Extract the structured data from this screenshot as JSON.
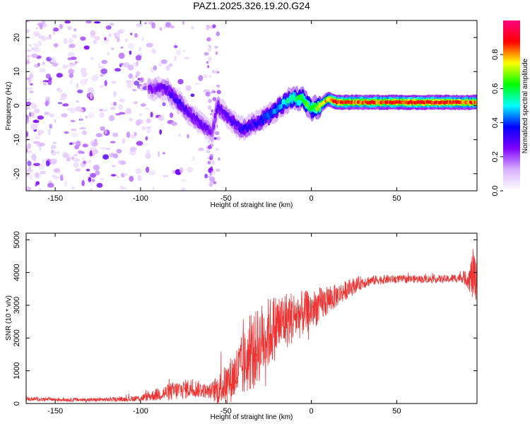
{
  "title": "PAZ1.2025.326.19.20.G24",
  "chart_data": [
    {
      "type": "heatmap",
      "title": "PAZ1.2025.326.19.20.G24",
      "xlabel": "Height of straight line (km)",
      "ylabel": "Frequency (Hz)",
      "xlim": [
        -167,
        97
      ],
      "ylim": [
        -25,
        25
      ],
      "xticks": [
        -150,
        -100,
        -50,
        0,
        50
      ],
      "yticks": [
        20,
        10,
        0,
        -10,
        -20
      ],
      "colorbar": {
        "label": "Normalized spectral amplitude",
        "range": [
          0,
          1
        ],
        "ticks": [
          "0.0",
          "0.2",
          "0.4",
          "0.6",
          "0.8"
        ],
        "tick_values": [
          0.0,
          0.2,
          0.4,
          0.6,
          0.8
        ],
        "colormap": [
          "#ffffff",
          "#d8b0ff",
          "#7f00ff",
          "#0000ff",
          "#00ffff",
          "#00ff00",
          "#ffff00",
          "#ff0000",
          "#ff0080"
        ]
      },
      "ridge": [
        {
          "x": -95,
          "freq": 5,
          "amp": 0.25
        },
        {
          "x": -85,
          "freq": 5,
          "amp": 0.3
        },
        {
          "x": -78,
          "freq": 1,
          "amp": 0.35
        },
        {
          "x": -70,
          "freq": -3,
          "amp": 0.3
        },
        {
          "x": -63,
          "freq": -6,
          "amp": 0.3
        },
        {
          "x": -58,
          "freq": -8,
          "amp": 0.25
        },
        {
          "x": -55,
          "freq": 0,
          "amp": 0.3
        },
        {
          "x": -48,
          "freq": -4,
          "amp": 0.3
        },
        {
          "x": -40,
          "freq": -7,
          "amp": 0.35
        },
        {
          "x": -32,
          "freq": -5,
          "amp": 0.35
        },
        {
          "x": -25,
          "freq": -3,
          "amp": 0.45
        },
        {
          "x": -18,
          "freq": 0,
          "amp": 0.5
        },
        {
          "x": -12,
          "freq": 2,
          "amp": 0.6
        },
        {
          "x": -5,
          "freq": 2,
          "amp": 0.7
        },
        {
          "x": 0,
          "freq": -1,
          "amp": 0.65
        },
        {
          "x": 5,
          "freq": 0,
          "amp": 0.8
        },
        {
          "x": 10,
          "freq": 2,
          "amp": 0.85
        },
        {
          "x": 15,
          "freq": 1,
          "amp": 0.95
        },
        {
          "x": 30,
          "freq": 1,
          "amp": 0.9
        },
        {
          "x": 50,
          "freq": 1,
          "amp": 0.95
        },
        {
          "x": 70,
          "freq": 1,
          "amp": 0.95
        },
        {
          "x": 97,
          "freq": 1,
          "amp": 0.9
        }
      ],
      "noise_region": {
        "x_range": [
          -167,
          -55
        ],
        "freq_range": [
          -25,
          25
        ],
        "amp_range": [
          0.05,
          0.3
        ]
      }
    },
    {
      "type": "line",
      "title": "",
      "xlabel": "Height of straight line (km)",
      "ylabel": "SNR (10 * v/v)",
      "xlim": [
        -167,
        97
      ],
      "ylim": [
        0,
        5200
      ],
      "xticks": [
        -150,
        -100,
        -50,
        0,
        50
      ],
      "yticks": [
        0,
        1000,
        2000,
        3000,
        4000,
        5000
      ],
      "color": "#ee3333",
      "series": [
        {
          "name": "SNR",
          "x": [
            -167,
            -150,
            -130,
            -110,
            -100,
            -95,
            -90,
            -85,
            -80,
            -75,
            -70,
            -65,
            -60,
            -55,
            -50,
            -45,
            -40,
            -35,
            -30,
            -25,
            -20,
            -15,
            -10,
            -5,
            0,
            5,
            10,
            15,
            20,
            25,
            30,
            35,
            40,
            50,
            60,
            70,
            80,
            88,
            92,
            95,
            97
          ],
          "y": [
            140,
            120,
            110,
            130,
            160,
            220,
            280,
            330,
            380,
            430,
            470,
            430,
            360,
            420,
            600,
            850,
            1150,
            1500,
            1850,
            2150,
            2400,
            2550,
            2650,
            2750,
            2850,
            3000,
            3150,
            3300,
            3450,
            3600,
            3700,
            3750,
            3780,
            3800,
            3800,
            3800,
            3800,
            3850,
            3800,
            3900,
            3700
          ],
          "noise_amplitude": [
            60,
            60,
            60,
            70,
            100,
            150,
            200,
            250,
            300,
            300,
            300,
            250,
            200,
            450,
            600,
            800,
            1000,
            1100,
            1200,
            1100,
            1000,
            900,
            800,
            700,
            600,
            550,
            450,
            350,
            300,
            250,
            200,
            150,
            150,
            120,
            120,
            120,
            120,
            150,
            300,
            900,
            500
          ]
        }
      ]
    }
  ]
}
